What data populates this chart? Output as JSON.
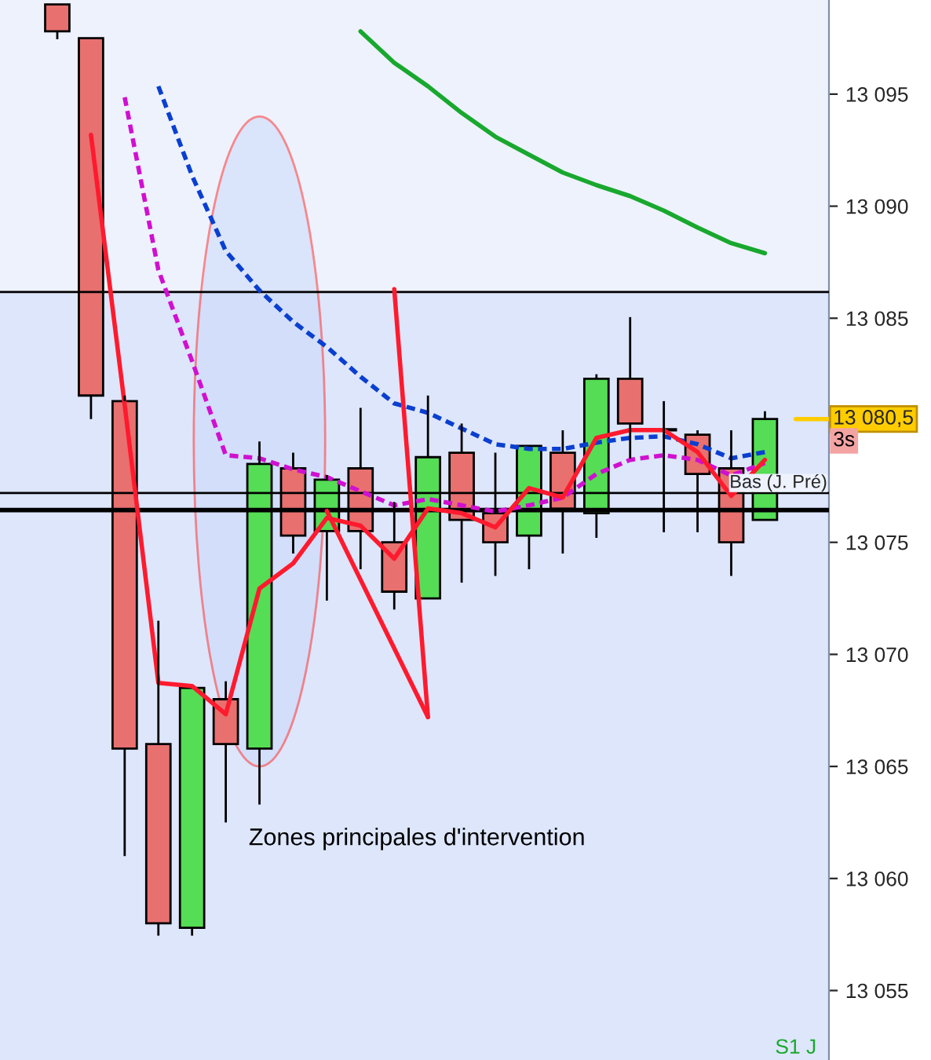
{
  "chart_data": {
    "type": "candlestick",
    "annotations": [
      "Zones principales d'intervention",
      "3s",
      "S1 J"
    ],
    "categories": [
      null,
      null,
      null,
      null,
      null,
      null,
      null,
      null,
      null,
      null,
      null,
      null,
      null,
      null,
      null,
      null,
      null,
      null,
      null,
      null,
      null,
      null
    ],
    "ohlc": [
      [
        13099.0,
        13099.0,
        13097.45,
        13097.8
      ],
      [
        13097.5,
        13097.5,
        13080.5,
        13081.55
      ],
      [
        13081.3,
        13081.55,
        13061.0,
        13065.8
      ],
      [
        13066.0,
        13071.5,
        13057.45,
        13058.0
      ],
      [
        13057.8,
        13068.5,
        13057.45,
        13068.5
      ],
      [
        13068.0,
        13068.8,
        13062.5,
        13066.0
      ],
      [
        13065.8,
        13079.5,
        13063.3,
        13078.5
      ],
      [
        13078.3,
        13079.0,
        13074.5,
        13075.3
      ],
      [
        13075.5,
        13078.0,
        13072.4,
        13077.8
      ],
      [
        13078.3,
        13081.0,
        13073.8,
        13075.5
      ],
      [
        13075.0,
        13076.8,
        13072.0,
        13072.8
      ],
      [
        13072.5,
        13081.55,
        13072.5,
        13078.8
      ],
      [
        13079.0,
        13080.3,
        13073.2,
        13076.0
      ],
      [
        13076.3,
        13079.0,
        13073.5,
        13075.0
      ],
      [
        13075.3,
        13079.3,
        13073.8,
        13079.3
      ],
      [
        13079.0,
        13080.0,
        13074.5,
        13076.5
      ],
      [
        13076.3,
        13082.5,
        13075.2,
        13082.3
      ],
      [
        13082.3,
        13085.05,
        13078.75,
        13080.3
      ],
      [
        13080.0,
        13081.3,
        13075.45,
        13080.0
      ],
      [
        13079.8,
        13080.0,
        13075.45,
        13078.05
      ],
      [
        13078.3,
        13080.0,
        13073.5,
        13075.0
      ],
      [
        13076.0,
        13080.85,
        13076.0,
        13080.5
      ]
    ],
    "colors": [
      "#e8706f",
      "#e8706f",
      "#e8706f",
      "#e8706f",
      "#55dd55",
      "#e8706f",
      "#55dd55",
      "#e8706f",
      "#55dd55",
      "#e8706f",
      "#e8706f",
      "#55dd55",
      "#e8706f",
      "#e8706f",
      "#55dd55",
      "#e8706f",
      "#55dd55",
      "#e8706f",
      "#e8706f",
      "#e8706f",
      "#e8706f",
      "#55dd55"
    ],
    "series": [
      {
        "type": "line",
        "color": "#18a82e",
        "line_style": "solid",
        "values": [
          null,
          null,
          null,
          null,
          null,
          null,
          null,
          null,
          null,
          13097.8,
          13096.4,
          13095.35,
          13094.16,
          13093.1,
          13092.3,
          13091.5,
          13090.94,
          13090.45,
          13089.8,
          13089.05,
          13088.35,
          13087.9
        ]
      },
      {
        "type": "line",
        "color": "#0a3fd0",
        "line_style": "dashed",
        "values": [
          null,
          null,
          null,
          13095.35,
          13091.36,
          13088.0,
          13086.24,
          13084.84,
          13083.72,
          13082.39,
          13081.2,
          13080.78,
          13080.08,
          13079.38,
          13079.17,
          13079.17,
          13079.45,
          13079.66,
          13079.73,
          13079.38,
          13078.75,
          13079.03
        ]
      },
      {
        "type": "line",
        "color": "#d010d0",
        "line_style": "dashed",
        "values": [
          null,
          null,
          13094.86,
          13087.15,
          13083.09,
          13078.89,
          13078.75,
          13078.26,
          13077.91,
          13077.28,
          13076.65,
          13076.93,
          13076.65,
          13076.37,
          13076.65,
          13077.0,
          13078.05,
          13078.68,
          13078.89,
          13078.68,
          13077.98,
          13078.54
        ]
      },
      {
        "type": "line",
        "color": "#ff1a2e",
        "line_style": "solid",
        "values": [
          null,
          13093.18,
          13081.13,
          13068.73,
          13068.59,
          13067.33,
          13072.94,
          13074.06,
          13076.09,
          13075.74,
          13074.27,
          13076.51,
          13076.3,
          13075.67,
          13077.42,
          13077.0,
          13079.66,
          13080.01,
          13080.01,
          13079.03,
          13077.07,
          13078.68
        ]
      },
      {
        "type": "line",
        "color": "#ff1a2e",
        "line_style": "solid",
        "values": [
          null,
          null,
          null,
          null,
          null,
          null,
          null,
          null,
          13076.4,
          13073.33,
          13070.27,
          13067.2,
          null,
          null,
          null,
          null,
          null,
          null,
          null,
          null,
          null,
          null
        ]
      },
      {
        "type": "line",
        "color": "#ff1a2e",
        "line_style": "solid",
        "values": [
          null,
          null,
          null,
          null,
          null,
          null,
          null,
          null,
          null,
          null,
          13086.3,
          13067.2,
          null,
          null,
          null,
          null,
          null,
          null,
          null,
          null,
          null,
          null
        ]
      }
    ],
    "ylim": [
      13051.9,
      13099.2
    ],
    "yticks": [
      {
        "value": 13055,
        "label": "13 055"
      },
      {
        "value": 13060,
        "label": "13 060"
      },
      {
        "value": 13065,
        "label": "13 065"
      },
      {
        "value": 13070,
        "label": "13 070"
      },
      {
        "value": 13075,
        "label": "13 075"
      },
      {
        "value": 13085,
        "label": "13 085"
      },
      {
        "value": 13090,
        "label": "13 090"
      },
      {
        "value": 13095,
        "label": "13 095"
      }
    ],
    "ref_lines": [
      {
        "axis": "y",
        "value": 13086.17,
        "color": "#000000"
      },
      {
        "axis": "y",
        "value": 13077.2,
        "label": "Bas (J. Pré)",
        "color": "#000000"
      },
      {
        "axis": "y",
        "value": 13076.44,
        "color": "#000000"
      },
      {
        "axis": "y",
        "value": 13080.5,
        "label": "13 080,5",
        "color": "#ffcc00"
      }
    ],
    "bands": [
      {
        "axis": "y",
        "from": 13051.9,
        "to": 13086.17,
        "color": "#dde6fb"
      }
    ],
    "tick_labels": "y",
    "grid": false,
    "legend": false
  }
}
